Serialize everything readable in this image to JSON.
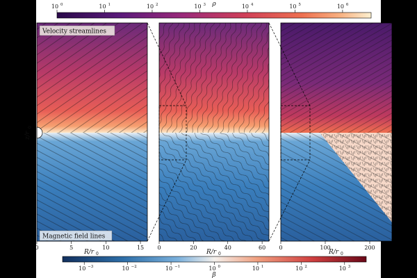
{
  "colorbars": {
    "top": {
      "label": "ρ",
      "ticks": [
        "10",
        "10",
        "10",
        "10",
        "10",
        "10",
        "10"
      ],
      "exponents": [
        "0",
        "1",
        "2",
        "3",
        "4",
        "5",
        "6"
      ],
      "scale": "log",
      "cmap": [
        "#2a0a4a",
        "#5a1a7a",
        "#8a2a7a",
        "#c0385e",
        "#e85a4e",
        "#f59a6a",
        "#fce8c8"
      ]
    },
    "bottom": {
      "label": "β",
      "ticks": [
        "10",
        "10",
        "10",
        "10",
        "10",
        "10",
        "10"
      ],
      "exponents": [
        "−3",
        "−2",
        "−1",
        "0",
        "1",
        "2",
        "3"
      ],
      "scale": "log",
      "cmap": [
        "#1a3a6e",
        "#2d6ea8",
        "#6aa8d8",
        "#f4f0ec",
        "#f0a080",
        "#d84a40",
        "#8a0a1a"
      ]
    }
  },
  "panels": {
    "annotations": {
      "top_label": "Velocity streamlines",
      "bottom_label": "Magnetic field lines"
    },
    "ylabel": "z/r",
    "ylabel_sub": "0",
    "panel1": {
      "xlabel": "R/r",
      "xlabel_sub": "0",
      "xticks": [
        "0",
        "5",
        "10",
        "15"
      ],
      "xlim": [
        0,
        16
      ]
    },
    "panel2": {
      "xlabel": "R/r",
      "xlabel_sub": "0",
      "xticks": [
        "0",
        "20",
        "40",
        "60"
      ],
      "xlim": [
        0,
        64
      ]
    },
    "panel3": {
      "xlabel": "R/r",
      "xlabel_sub": "0",
      "xticks": [
        "0",
        "100",
        "200"
      ],
      "xlim": [
        0,
        250
      ]
    }
  },
  "chart_data": {
    "type": "heatmap",
    "description_units": "density (upper half) and plasma beta (lower half) maps with overlaid streamlines, three zoom levels",
    "panels": [
      {
        "xlim": [
          0,
          16
        ],
        "xticks": [
          0,
          5,
          10,
          15
        ],
        "upper_field": "rho",
        "lower_field": "beta"
      },
      {
        "xlim": [
          0,
          64
        ],
        "xticks": [
          0,
          20,
          40,
          60
        ],
        "upper_field": "rho",
        "lower_field": "beta"
      },
      {
        "xlim": [
          0,
          250
        ],
        "xticks": [
          0,
          100,
          200
        ],
        "upper_field": "rho",
        "lower_field": "beta"
      }
    ],
    "colorbar_rho": {
      "min_exp": 0,
      "max_exp": 6.6,
      "scale": "log"
    },
    "colorbar_beta": {
      "min_exp": -3.5,
      "max_exp": 3.5,
      "scale": "log"
    },
    "colors": {
      "upper_top": "#7a2a78",
      "upper_mid": "#d84a5a",
      "equator": "#fce8c8",
      "lower_mid": "#4a8ec4",
      "lower_bottom": "#2a5a96"
    }
  }
}
